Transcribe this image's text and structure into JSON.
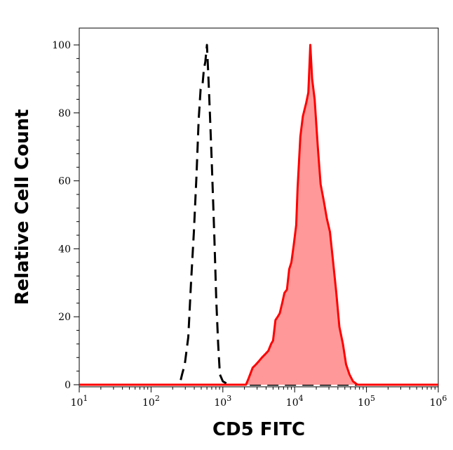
{
  "chart_data": {
    "type": "area",
    "xlabel": "CD5 FITC",
    "ylabel": "Relative Cell Count",
    "x_scale": "log",
    "xlim": [
      10,
      1000000
    ],
    "ylim": [
      0,
      100
    ],
    "x_ticks": [
      {
        "base": "10",
        "exp": "1",
        "value": 10
      },
      {
        "base": "10",
        "exp": "2",
        "value": 100
      },
      {
        "base": "10",
        "exp": "3",
        "value": 1000
      },
      {
        "base": "10",
        "exp": "4",
        "value": 10000
      },
      {
        "base": "10",
        "exp": "5",
        "value": 100000
      },
      {
        "base": "10",
        "exp": "6",
        "value": 1000000
      }
    ],
    "y_ticks": [
      "0",
      "20",
      "40",
      "60",
      "80",
      "100"
    ],
    "grid": false,
    "series": [
      {
        "style": "dashed",
        "color": "#000000",
        "fill": "none",
        "points": [
          [
            10,
            0
          ],
          [
            250,
            0
          ],
          [
            270,
            3
          ],
          [
            295,
            6
          ],
          [
            330,
            14
          ],
          [
            360,
            30
          ],
          [
            395,
            45
          ],
          [
            430,
            62
          ],
          [
            460,
            78
          ],
          [
            490,
            87
          ],
          [
            520,
            88
          ],
          [
            545,
            93
          ],
          [
            570,
            95
          ],
          [
            600,
            100
          ],
          [
            630,
            90
          ],
          [
            660,
            80
          ],
          [
            700,
            66
          ],
          [
            760,
            44
          ],
          [
            810,
            25
          ],
          [
            860,
            12
          ],
          [
            910,
            3
          ],
          [
            1000,
            1
          ],
          [
            1200,
            0
          ],
          [
            1000000,
            0
          ]
        ]
      },
      {
        "style": "solid",
        "color": "#ff0000",
        "fill": "#ff9999",
        "points": [
          [
            10,
            0
          ],
          [
            2100,
            0
          ],
          [
            2300,
            2
          ],
          [
            2600,
            5
          ],
          [
            2900,
            6
          ],
          [
            3200,
            7
          ],
          [
            3500,
            8
          ],
          [
            3900,
            9
          ],
          [
            4300,
            10
          ],
          [
            4700,
            12
          ],
          [
            5000,
            13
          ],
          [
            5400,
            19
          ],
          [
            5800,
            20
          ],
          [
            6200,
            21
          ],
          [
            6700,
            24
          ],
          [
            7200,
            27
          ],
          [
            7800,
            28
          ],
          [
            8400,
            34
          ],
          [
            9000,
            36
          ],
          [
            9700,
            41
          ],
          [
            10500,
            47
          ],
          [
            11000,
            58
          ],
          [
            12000,
            73
          ],
          [
            13000,
            79
          ],
          [
            14500,
            83
          ],
          [
            15500,
            86
          ],
          [
            16500,
            100
          ],
          [
            17500,
            90
          ],
          [
            19000,
            84
          ],
          [
            21000,
            70
          ],
          [
            23000,
            59
          ],
          [
            25500,
            54
          ],
          [
            28000,
            49
          ],
          [
            31000,
            45
          ],
          [
            34000,
            37
          ],
          [
            38000,
            27
          ],
          [
            42000,
            17
          ],
          [
            47000,
            12
          ],
          [
            52000,
            6
          ],
          [
            58000,
            3
          ],
          [
            65000,
            1
          ],
          [
            75000,
            0
          ],
          [
            1000000,
            0
          ]
        ]
      }
    ]
  }
}
